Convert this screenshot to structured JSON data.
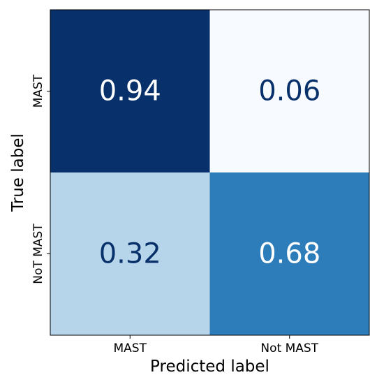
{
  "chart_data": {
    "type": "heatmap",
    "title": "",
    "xlabel": "Predicted label",
    "ylabel": "True label",
    "x_categories": [
      "MAST",
      "Not MAST"
    ],
    "y_categories": [
      "MAST",
      "NoT MAST"
    ],
    "values": [
      [
        0.94,
        0.06
      ],
      [
        0.32,
        0.68
      ]
    ],
    "value_labels": [
      [
        "0.94",
        "0.06"
      ],
      [
        "0.32",
        "0.68"
      ]
    ],
    "colormap": "Blues",
    "colors": {
      "low": "#f7fbff",
      "high": "#08306b",
      "text_dark": "#08306b",
      "text_light": "#ffffff"
    },
    "grid": false
  }
}
